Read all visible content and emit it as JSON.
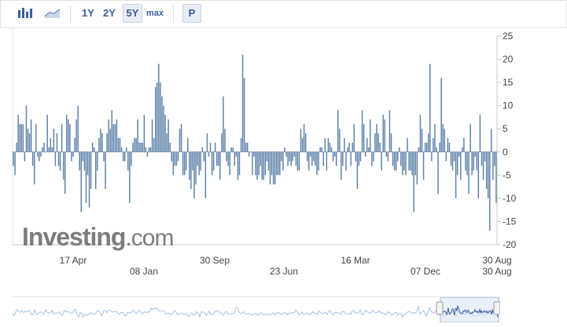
{
  "toolbar": {
    "chart_type_icons": [
      "bar-chart-icon",
      "area-chart-icon"
    ],
    "ranges": [
      "1Y",
      "2Y",
      "5Y",
      "max"
    ],
    "active_range": "5Y",
    "p_label": "P"
  },
  "watermark": {
    "brand": "Investing",
    "suffix": ".com"
  },
  "colors": {
    "bar": "#5b7fa8",
    "axis": "#999999",
    "navigator_line": "#aac3e3"
  },
  "chart_data": {
    "type": "bar",
    "title": "",
    "xlabel": "",
    "ylabel": "",
    "ylim": [
      -20,
      25
    ],
    "y_ticks": [
      25,
      20,
      15,
      10,
      5,
      0,
      -5,
      -10,
      -15,
      -20
    ],
    "x_tick_labels_row1": [
      "17 Apr",
      "30 Sep",
      "16 Mar",
      "30 Aug"
    ],
    "x_tick_labels_row2": [
      "08 Jan",
      "23 Jun",
      "07 Dec",
      "30 Aug"
    ],
    "values": [
      -3,
      -5,
      2,
      8,
      6,
      6,
      6,
      -2,
      10,
      5,
      4,
      7,
      -3,
      -7,
      6,
      -1,
      -2,
      -1,
      1,
      2,
      0,
      8,
      1,
      3,
      1,
      5,
      -3,
      4,
      -3,
      -4,
      6,
      -6,
      -9,
      8,
      7,
      6,
      -2,
      -1,
      3,
      7,
      10,
      -4,
      -13,
      -2,
      -4,
      -11,
      -5,
      -12,
      -8,
      2,
      1,
      -8,
      -4,
      3,
      5,
      4,
      -2,
      -8,
      4,
      7,
      5,
      9,
      6,
      6,
      7,
      3,
      3,
      1,
      -2,
      -2,
      1,
      -4,
      -11,
      -3,
      2,
      3,
      3,
      7,
      2,
      2,
      2,
      8,
      1,
      -1,
      1,
      1,
      7,
      3,
      14,
      15,
      19,
      15,
      12,
      10,
      8,
      4,
      7,
      2,
      -2,
      -5,
      -3,
      -3,
      -2,
      5,
      6,
      -5,
      -5,
      -4,
      3,
      -6,
      -8,
      -4,
      -10,
      -7,
      -3,
      -5,
      -4,
      1,
      -2,
      -10,
      4,
      -1,
      2,
      -5,
      -4,
      2,
      -3,
      -3,
      -6,
      4,
      12,
      5,
      -2,
      -3,
      -5,
      1,
      1,
      -3,
      -1,
      -6,
      -5,
      3,
      21,
      16,
      2,
      2,
      -1,
      0,
      -5,
      -1,
      -5,
      -6,
      -5,
      -3,
      -6,
      -6,
      -5,
      -2,
      -4,
      -7,
      -5,
      -7,
      -7,
      -5,
      -5,
      -5,
      -2,
      -4,
      1,
      -1,
      -3,
      -2,
      -3,
      -2,
      -1,
      -3,
      -4,
      -4,
      5,
      3,
      6,
      4,
      -2,
      -4,
      -1,
      -3,
      -2,
      -3,
      -5,
      -4,
      1,
      1,
      -3,
      3,
      -4,
      3,
      2,
      1,
      -2,
      -1,
      -3,
      9,
      5,
      -6,
      -3,
      3,
      -4,
      1,
      2,
      -3,
      2,
      6,
      -2,
      -8,
      -3,
      -2,
      9,
      6,
      -1,
      3,
      1,
      7,
      -3,
      -2,
      4,
      6,
      4,
      2,
      -4,
      8,
      7,
      -1,
      -2,
      9,
      4,
      -3,
      -4,
      -4,
      -2,
      1,
      -3,
      -5,
      -4,
      -5,
      3,
      -4,
      -4,
      -5,
      -13,
      -5,
      -7,
      1,
      8,
      5,
      -6,
      2,
      2,
      4,
      19,
      -2,
      3,
      6,
      1,
      -9,
      2,
      16,
      6,
      5,
      -2,
      3,
      2,
      -3,
      -4,
      -2,
      -10,
      -5,
      -1,
      -6,
      1,
      3,
      -4,
      -5,
      -9,
      6,
      -5,
      -4,
      -1,
      -4,
      -10,
      8,
      -3,
      -6,
      -2,
      -8,
      -10,
      -17,
      5,
      -6,
      -3,
      -11
    ]
  }
}
